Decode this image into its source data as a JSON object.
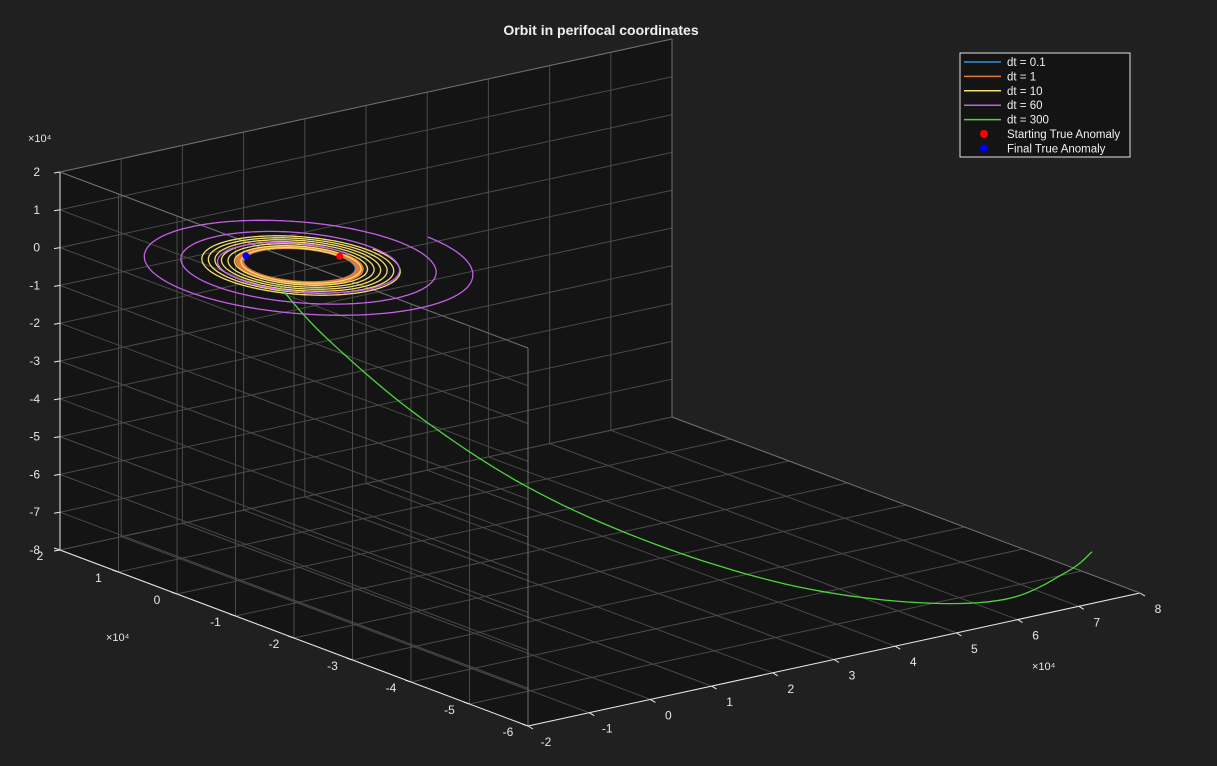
{
  "chart_data": {
    "type": "line",
    "title": "Orbit in perifocal coordinates",
    "axes": {
      "x": {
        "range": [
          -2,
          8
        ],
        "ticks": [
          "-2",
          "-1",
          "0",
          "1",
          "2",
          "3",
          "4",
          "5",
          "6",
          "7",
          "8"
        ],
        "exponent": "×10⁴"
      },
      "y": {
        "range": [
          -6,
          2
        ],
        "ticks": [
          "-6",
          "-5",
          "-4",
          "-3",
          "-2",
          "-1",
          "0",
          "1",
          "2"
        ],
        "exponent": "×10⁴"
      },
      "z": {
        "range": [
          -8,
          2
        ],
        "ticks": [
          "-8",
          "-7",
          "-6",
          "-5",
          "-4",
          "-3",
          "-2",
          "-1",
          "0",
          "1",
          "2"
        ],
        "exponent": "×10⁴"
      },
      "grid": true,
      "box": true
    },
    "legend": {
      "position": "top-right",
      "entries": [
        {
          "label": "dt = 0.1",
          "color": "#3d8fd6",
          "marker": "line"
        },
        {
          "label": "dt = 1",
          "color": "#e27a3c",
          "marker": "line"
        },
        {
          "label": "dt = 10",
          "color": "#f4de6e",
          "marker": "line"
        },
        {
          "label": "dt = 60",
          "color": "#c35fe6",
          "marker": "line"
        },
        {
          "label": "dt = 300",
          "color": "#4fd43f",
          "marker": "line"
        },
        {
          "label": "Starting True Anomaly",
          "color": "#ff0000",
          "marker": "dot"
        },
        {
          "label": "Final True Anomaly",
          "color": "#0000ff",
          "marker": "dot"
        }
      ]
    },
    "series": [
      {
        "name": "dt = 0.1",
        "color": "#3d8fd6",
        "shape": "circle",
        "center_xy": [
          0,
          0
        ],
        "radius": 0.66,
        "rings": 1
      },
      {
        "name": "dt = 1",
        "color": "#e27a3c",
        "shape": "spiral",
        "center_xy": [
          0,
          0
        ],
        "radius_start": 0.66,
        "radius_end": 0.75,
        "rings": 5
      },
      {
        "name": "dt = 10",
        "color": "#f4de6e",
        "shape": "spiral",
        "center_xy": [
          0,
          0
        ],
        "radius_start": 0.66,
        "radius_end": 1.2,
        "rings": 7
      },
      {
        "name": "dt = 60",
        "color": "#c35fe6",
        "shape": "spiral",
        "center_xy": [
          0,
          0
        ],
        "radius_start": 0.8,
        "radius_end": 2.1,
        "rings": 3
      },
      {
        "name": "dt = 300",
        "color": "#4fd43f",
        "shape": "escape",
        "points": [
          [
            -0.66,
            -0.33,
            -0.1
          ],
          [
            -0.75,
            -1.2,
            -0.9
          ],
          [
            -0.6,
            -2.6,
            -2.2
          ],
          [
            0.1,
            -3.8,
            -3.7
          ],
          [
            1.2,
            -4.8,
            -5.0
          ],
          [
            2.6,
            -5.6,
            -6.1
          ],
          [
            4.2,
            -6.0,
            -6.9
          ],
          [
            5.7,
            -6.1,
            -7.3
          ],
          [
            7.0,
            -5.8,
            -7.2
          ],
          [
            7.6,
            -5.6,
            -7.0
          ]
        ]
      }
    ],
    "markers": [
      {
        "name": "Starting True Anomaly",
        "color": "#ff0000",
        "xyz": [
          0.66,
          0,
          0
        ]
      },
      {
        "name": "Final True Anomaly",
        "color": "#0000ff",
        "xyz": [
          -0.3,
          0.6,
          0
        ]
      }
    ]
  }
}
